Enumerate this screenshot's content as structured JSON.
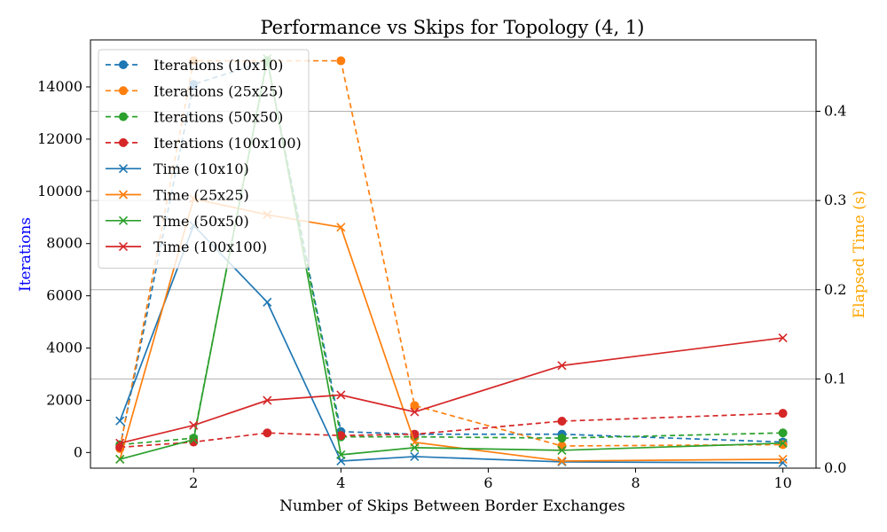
{
  "chart_data": {
    "type": "line",
    "title": "Performance vs Skips for Topology (4, 1)",
    "xlabel": "Number of Skips Between Border Exchanges",
    "ylabel_left": "Iterations",
    "ylabel_right": "Elapsed Time (s)",
    "xlim": [
      0.6,
      10.45
    ],
    "ylim_left": [
      -600,
      15800
    ],
    "ylim_right": [
      0.0,
      0.48
    ],
    "xticks": [
      2,
      4,
      6,
      8,
      10
    ],
    "yticks_left": [
      0,
      2000,
      4000,
      6000,
      8000,
      10000,
      12000,
      14000
    ],
    "yticks_right": [
      0.0,
      0.1,
      0.2,
      0.3,
      0.4
    ],
    "grid": "right axis horizontal lines",
    "legend_position": "top-left",
    "colors": {
      "left_label": "#0000ff",
      "right_label": "#ffa500",
      "10x10": "#1f77b4",
      "25x25": "#ff7f0e",
      "50x50": "#2ca02c",
      "100x100": "#d62728"
    },
    "x": [
      1,
      2,
      3,
      4,
      5,
      7,
      10
    ],
    "series": [
      {
        "name": "Iterations (10x10)",
        "axis": "left",
        "style": "dashed",
        "marker": "circle",
        "color": "#1f77b4",
        "values": [
          200,
          14100,
          15000,
          800,
          700,
          700,
          400
        ]
      },
      {
        "name": "Iterations (25x25)",
        "axis": "left",
        "style": "dashed",
        "marker": "circle",
        "color": "#ff7f0e",
        "values": [
          150,
          15000,
          15000,
          15000,
          1800,
          250,
          300
        ]
      },
      {
        "name": "Iterations (50x50)",
        "axis": "left",
        "style": "dashed",
        "marker": "circle",
        "color": "#2ca02c",
        "values": [
          300,
          550,
          15000,
          600,
          600,
          550,
          750
        ]
      },
      {
        "name": "Iterations (100x100)",
        "axis": "left",
        "style": "dashed",
        "marker": "circle",
        "color": "#d62728",
        "values": [
          200,
          400,
          750,
          650,
          700,
          1200,
          1500
        ]
      },
      {
        "name": "Time (10x10)",
        "axis": "right",
        "style": "solid",
        "marker": "x",
        "color": "#1f77b4",
        "values": [
          0.053,
          0.272,
          0.186,
          0.008,
          0.013,
          0.007,
          0.006
        ]
      },
      {
        "name": "Time (25x25)",
        "axis": "right",
        "style": "solid",
        "marker": "x",
        "color": "#ff7f0e",
        "values": [
          0.01,
          0.302,
          0.284,
          0.27,
          0.029,
          0.008,
          0.01
        ]
      },
      {
        "name": "Time (50x50)",
        "axis": "right",
        "style": "solid",
        "marker": "x",
        "color": "#2ca02c",
        "values": [
          0.01,
          0.032,
          0.459,
          0.015,
          0.023,
          0.02,
          0.028
        ]
      },
      {
        "name": "Time (100x100)",
        "axis": "right",
        "style": "solid",
        "marker": "x",
        "color": "#d62728",
        "values": [
          0.028,
          0.048,
          0.076,
          0.082,
          0.063,
          0.115,
          0.146
        ]
      }
    ]
  }
}
